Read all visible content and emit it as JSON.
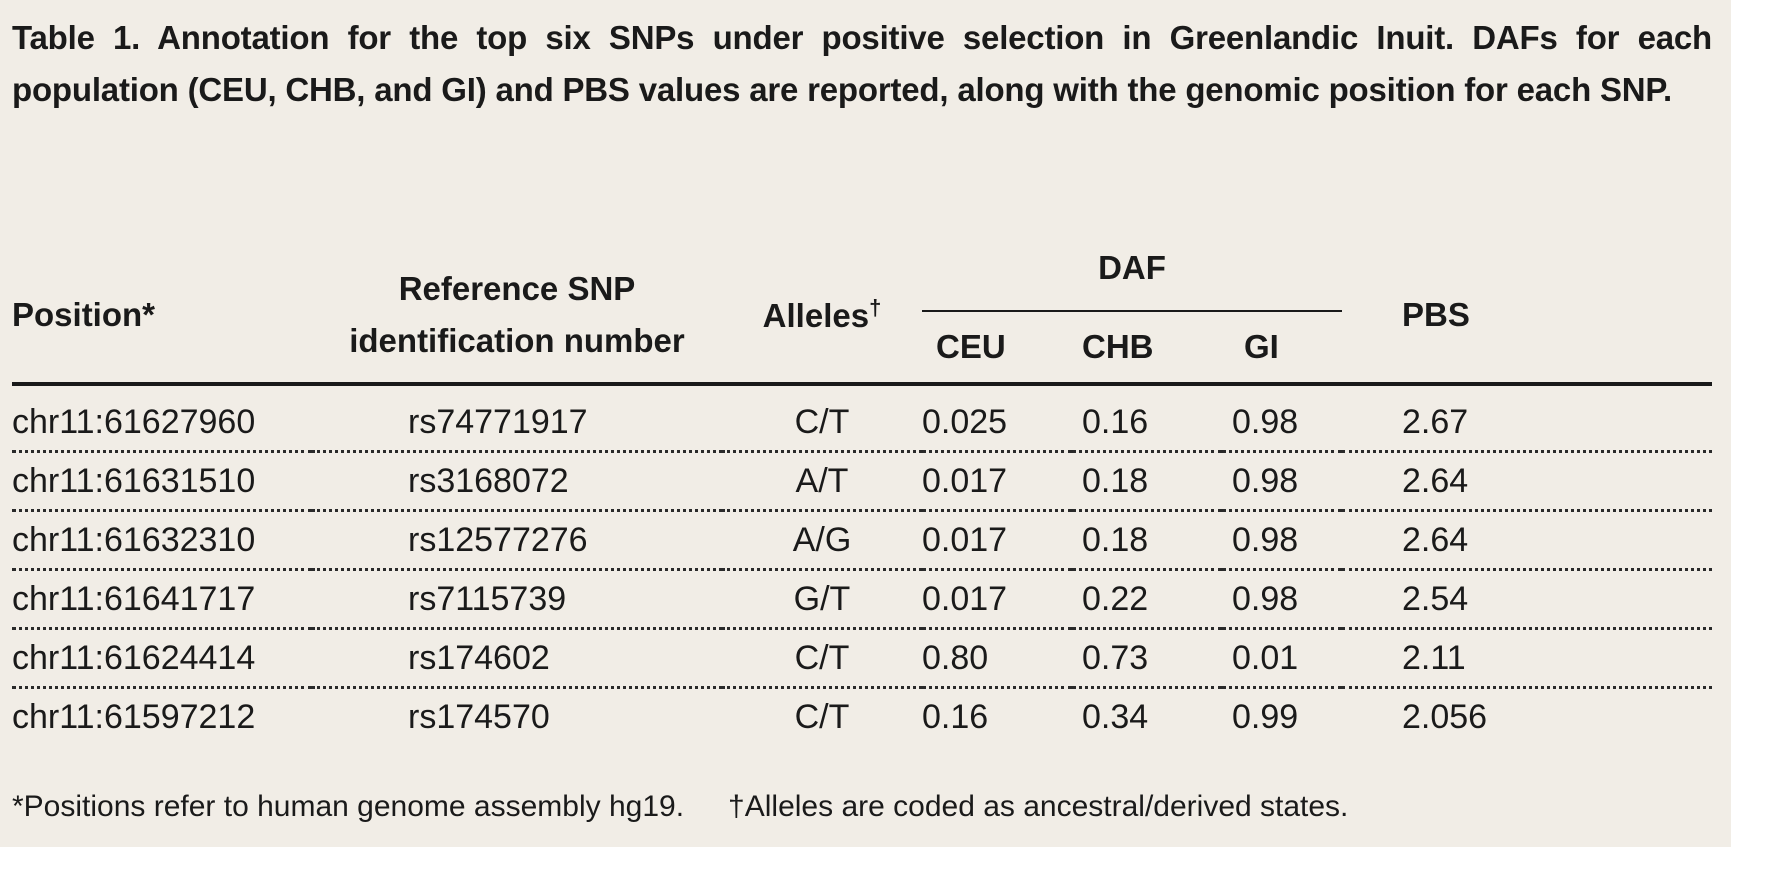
{
  "caption": "Table 1. Annotation for the top six SNPs under positive selection in Greenlandic Inuit. DAFs for each population (CEU, CHB, and GI) and PBS values are reported, along with the genomic position for each SNP.",
  "headers": {
    "position": "Position*",
    "ref_snp_line1": "Reference SNP",
    "ref_snp_line2": "identification number",
    "alleles": "Alleles",
    "alleles_mark": "†",
    "daf": "DAF",
    "ceu": "CEU",
    "chb": "CHB",
    "gi": "GI",
    "pbs": "PBS"
  },
  "rows": [
    {
      "position": "chr11:61627960",
      "snp": "rs74771917",
      "alleles": "C/T",
      "ceu": "0.025",
      "chb": "0.16",
      "gi": "0.98",
      "pbs": "2.67"
    },
    {
      "position": "chr11:61631510",
      "snp": "rs3168072",
      "alleles": "A/T",
      "ceu": "0.017",
      "chb": "0.18",
      "gi": "0.98",
      "pbs": "2.64"
    },
    {
      "position": "chr11:61632310",
      "snp": "rs12577276",
      "alleles": "A/G",
      "ceu": "0.017",
      "chb": "0.18",
      "gi": "0.98",
      "pbs": "2.64"
    },
    {
      "position": "chr11:61641717",
      "snp": "rs7115739",
      "alleles": "G/T",
      "ceu": "0.017",
      "chb": "0.22",
      "gi": "0.98",
      "pbs": "2.54"
    },
    {
      "position": "chr11:61624414",
      "snp": "rs174602",
      "alleles": "C/T",
      "ceu": "0.80",
      "chb": "0.73",
      "gi": "0.01",
      "pbs": "2.11"
    },
    {
      "position": "chr11:61597212",
      "snp": "rs174570",
      "alleles": "C/T",
      "ceu": "0.16",
      "chb": "0.34",
      "gi": "0.99",
      "pbs": "2.056"
    }
  ],
  "footnotes": {
    "positions": "*Positions refer to human genome assembly hg19.",
    "alleles": "†Alleles are coded as ancestral/derived states."
  }
}
